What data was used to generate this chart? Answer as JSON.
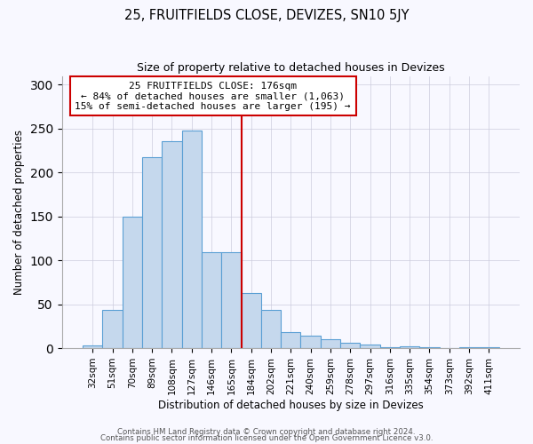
{
  "title": "25, FRUITFIELDS CLOSE, DEVIZES, SN10 5JY",
  "subtitle": "Size of property relative to detached houses in Devizes",
  "xlabel": "Distribution of detached houses by size in Devizes",
  "ylabel": "Number of detached properties",
  "bar_labels": [
    "32sqm",
    "51sqm",
    "70sqm",
    "89sqm",
    "108sqm",
    "127sqm",
    "146sqm",
    "165sqm",
    "184sqm",
    "202sqm",
    "221sqm",
    "240sqm",
    "259sqm",
    "278sqm",
    "297sqm",
    "316sqm",
    "335sqm",
    "354sqm",
    "373sqm",
    "392sqm",
    "411sqm"
  ],
  "bar_values": [
    3,
    44,
    150,
    218,
    236,
    248,
    109,
    109,
    63,
    44,
    18,
    14,
    10,
    6,
    4,
    1,
    2,
    1,
    0,
    1,
    1
  ],
  "bar_color": "#c5d8ed",
  "bar_edge_color": "#5a9fd4",
  "annotation_title": "25 FRUITFIELDS CLOSE: 176sqm",
  "annotation_line1": "← 84% of detached houses are smaller (1,063)",
  "annotation_line2": "15% of semi-detached houses are larger (195) →",
  "annotation_box_color": "#cc0000",
  "ylim": [
    0,
    310
  ],
  "footnote1": "Contains HM Land Registry data © Crown copyright and database right 2024.",
  "footnote2": "Contains public sector information licensed under the Open Government Licence v3.0.",
  "bg_color": "#f8f8ff",
  "grid_color": "#ccccdd"
}
